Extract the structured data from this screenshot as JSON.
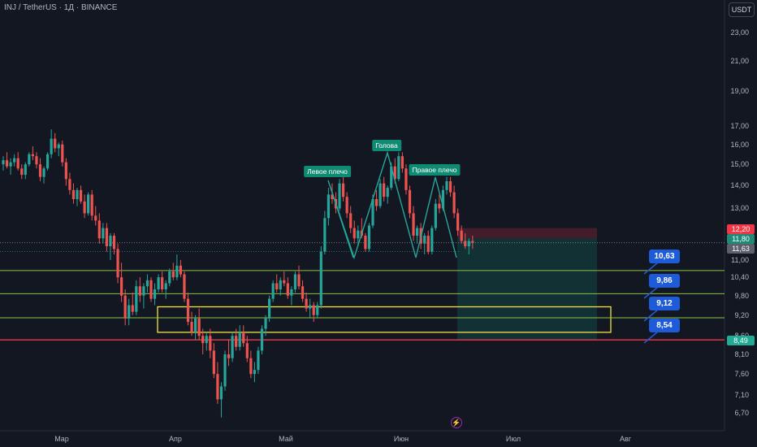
{
  "header": {
    "title": "INJ / TetherUS · 1Д · BINANCE",
    "currency_button": "USDT"
  },
  "price_axis": [
    "23,00",
    "21,00",
    "19,00",
    "17,00",
    "16,00",
    "15,00",
    "14,00",
    "13,00",
    "11,00",
    "10,40",
    "9,80",
    "9,20",
    "8,60",
    "8,10",
    "7,60",
    "7,10",
    "6,70"
  ],
  "time_axis": [
    "Мар",
    "Апр",
    "Май",
    "Июн",
    "Июл",
    "Авг"
  ],
  "price_tags": [
    {
      "text": "12,20",
      "color": "#f23645"
    },
    {
      "text": "11,80",
      "color": "#1f8a78"
    },
    {
      "text": "11,63",
      "color": "#5d606b"
    },
    {
      "text": "8,49",
      "color": "#22ab94"
    }
  ],
  "callouts": [
    "10,63",
    "9,86",
    "9,12",
    "8,54"
  ],
  "pattern_labels": [
    "Левое плечо",
    "Голова",
    "Правое плечо"
  ],
  "colors": {
    "bull": "#26a69a",
    "bear": "#ef5350",
    "level_green": "#8bc34a",
    "level_red": "#f23645",
    "zone": "#f5e342",
    "callout": "#1e5bd8"
  },
  "icons": {
    "replay": "lightning-bolt-icon"
  },
  "chart_data": {
    "type": "candlestick",
    "title": "INJ / TetherUS · 1Д · BINANCE",
    "x_ticks": [
      "Мар",
      "Апр",
      "Май",
      "Июн",
      "Июл",
      "Авг"
    ],
    "y_ticks": [
      23.0,
      21.0,
      19.0,
      17.0,
      16.0,
      15.0,
      14.0,
      13.0,
      11.0,
      10.4,
      9.8,
      9.2,
      8.6,
      8.1,
      7.6,
      7.1,
      6.7
    ],
    "y_scale": "log",
    "ylim": [
      6.5,
      25.0
    ],
    "current_price": 11.63,
    "horizontal_levels": [
      10.63,
      9.86,
      9.12,
      8.49
    ],
    "demand_zone": [
      8.7,
      9.45
    ],
    "position": {
      "entry": 11.8,
      "stop": 12.2,
      "target": 8.49
    },
    "pattern": "head and shoulders",
    "pattern_points": [
      {
        "label": "Левое плечо",
        "price": 14.2
      },
      {
        "label": "Голова",
        "price": 15.6
      },
      {
        "label": "Правое плечо",
        "price": 14.4
      }
    ],
    "ohlc": [
      [
        15.0,
        15.4,
        14.7,
        15.2
      ],
      [
        15.2,
        15.6,
        14.8,
        14.9
      ],
      [
        14.9,
        15.3,
        14.5,
        15.1
      ],
      [
        15.1,
        15.5,
        14.9,
        15.3
      ],
      [
        15.3,
        15.6,
        14.7,
        14.8
      ],
      [
        14.8,
        15.0,
        14.3,
        14.5
      ],
      [
        14.5,
        15.1,
        14.3,
        15.0
      ],
      [
        15.0,
        15.6,
        14.9,
        15.5
      ],
      [
        15.5,
        15.9,
        15.2,
        15.4
      ],
      [
        15.4,
        15.6,
        14.8,
        15.0
      ],
      [
        15.0,
        15.3,
        14.2,
        14.4
      ],
      [
        14.4,
        14.9,
        14.1,
        14.8
      ],
      [
        14.8,
        15.6,
        14.7,
        15.5
      ],
      [
        15.5,
        16.8,
        15.3,
        16.3
      ],
      [
        16.3,
        16.6,
        15.6,
        15.8
      ],
      [
        15.8,
        16.1,
        15.4,
        16.0
      ],
      [
        16.0,
        16.2,
        14.9,
        15.1
      ],
      [
        15.1,
        15.3,
        14.0,
        14.3
      ],
      [
        14.3,
        14.6,
        13.6,
        13.8
      ],
      [
        13.8,
        14.1,
        13.2,
        13.4
      ],
      [
        13.4,
        13.9,
        13.1,
        13.8
      ],
      [
        13.8,
        14.0,
        13.2,
        13.3
      ],
      [
        13.3,
        13.6,
        12.6,
        12.8
      ],
      [
        12.8,
        13.7,
        12.7,
        13.6
      ],
      [
        13.6,
        13.8,
        12.5,
        12.7
      ],
      [
        12.7,
        13.1,
        12.3,
        12.5
      ],
      [
        12.5,
        12.8,
        11.6,
        11.8
      ],
      [
        11.8,
        12.4,
        11.6,
        12.2
      ],
      [
        12.2,
        12.4,
        11.3,
        11.5
      ],
      [
        11.5,
        12.0,
        11.0,
        11.9
      ],
      [
        11.9,
        12.0,
        11.2,
        11.4
      ],
      [
        11.4,
        11.6,
        10.2,
        10.4
      ],
      [
        10.4,
        10.9,
        9.6,
        9.8
      ],
      [
        9.8,
        10.0,
        8.9,
        9.1
      ],
      [
        9.1,
        9.7,
        8.9,
        9.5
      ],
      [
        9.5,
        9.9,
        9.2,
        9.3
      ],
      [
        9.3,
        10.3,
        9.2,
        10.1
      ],
      [
        10.1,
        10.4,
        9.6,
        9.8
      ],
      [
        9.8,
        10.2,
        9.4,
        10.1
      ],
      [
        10.1,
        10.5,
        9.9,
        10.3
      ],
      [
        10.3,
        10.4,
        9.6,
        9.7
      ],
      [
        9.7,
        10.2,
        9.5,
        10.0
      ],
      [
        10.0,
        10.5,
        9.9,
        10.4
      ],
      [
        10.4,
        10.6,
        9.9,
        10.0
      ],
      [
        10.0,
        10.3,
        9.7,
        10.2
      ],
      [
        10.2,
        10.7,
        10.1,
        10.6
      ],
      [
        10.6,
        10.9,
        10.3,
        10.4
      ],
      [
        10.4,
        11.2,
        10.3,
        10.8
      ],
      [
        10.8,
        11.0,
        10.4,
        10.5
      ],
      [
        10.5,
        10.6,
        9.6,
        9.7
      ],
      [
        9.7,
        9.9,
        8.9,
        9.0
      ],
      [
        9.0,
        9.3,
        8.6,
        8.7
      ],
      [
        8.7,
        9.2,
        8.5,
        9.1
      ],
      [
        9.1,
        9.4,
        8.5,
        8.6
      ],
      [
        8.6,
        8.8,
        8.1,
        8.4
      ],
      [
        8.4,
        8.7,
        8.2,
        8.6
      ],
      [
        8.6,
        8.8,
        8.0,
        8.2
      ],
      [
        8.2,
        8.4,
        7.5,
        7.6
      ],
      [
        7.6,
        7.9,
        6.9,
        7.0
      ],
      [
        7.0,
        7.4,
        6.6,
        7.3
      ],
      [
        7.3,
        8.2,
        7.2,
        8.1
      ],
      [
        8.1,
        8.5,
        7.8,
        8.0
      ],
      [
        8.0,
        8.7,
        7.9,
        8.6
      ],
      [
        8.6,
        8.8,
        8.2,
        8.3
      ],
      [
        8.3,
        8.9,
        8.2,
        8.7
      ],
      [
        8.7,
        8.9,
        8.3,
        8.4
      ],
      [
        8.4,
        8.6,
        7.9,
        8.0
      ],
      [
        8.0,
        8.2,
        7.5,
        7.6
      ],
      [
        7.6,
        7.9,
        7.4,
        7.7
      ],
      [
        7.7,
        8.3,
        7.6,
        8.2
      ],
      [
        8.2,
        8.9,
        8.1,
        8.8
      ],
      [
        8.8,
        9.2,
        8.6,
        9.1
      ],
      [
        9.1,
        9.8,
        9.0,
        9.7
      ],
      [
        9.7,
        10.3,
        9.6,
        10.2
      ],
      [
        10.2,
        10.5,
        9.9,
        10.0
      ],
      [
        10.0,
        10.4,
        9.8,
        10.3
      ],
      [
        10.3,
        10.6,
        10.1,
        10.2
      ],
      [
        10.2,
        10.4,
        9.7,
        9.8
      ],
      [
        9.8,
        10.1,
        9.5,
        10.0
      ],
      [
        10.0,
        10.6,
        9.9,
        10.5
      ],
      [
        10.5,
        10.8,
        10.0,
        10.1
      ],
      [
        10.1,
        10.3,
        9.6,
        9.7
      ],
      [
        9.7,
        9.9,
        9.3,
        9.4
      ],
      [
        9.4,
        9.7,
        9.1,
        9.5
      ],
      [
        9.5,
        9.6,
        9.0,
        9.2
      ],
      [
        9.2,
        9.6,
        9.1,
        9.5
      ],
      [
        9.5,
        11.5,
        9.4,
        11.3
      ],
      [
        11.3,
        12.9,
        11.2,
        12.6
      ],
      [
        12.6,
        13.9,
        12.3,
        13.6
      ],
      [
        13.6,
        14.1,
        13.2,
        13.4
      ],
      [
        13.4,
        13.7,
        12.8,
        13.0
      ],
      [
        13.0,
        14.3,
        12.9,
        14.1
      ],
      [
        14.1,
        14.4,
        13.3,
        13.5
      ],
      [
        13.5,
        13.7,
        12.6,
        12.8
      ],
      [
        12.8,
        13.1,
        12.0,
        12.2
      ],
      [
        12.2,
        12.5,
        11.6,
        11.8
      ],
      [
        11.8,
        12.3,
        11.5,
        12.1
      ],
      [
        12.1,
        12.6,
        11.8,
        11.9
      ],
      [
        11.9,
        12.0,
        11.3,
        11.4
      ],
      [
        11.4,
        12.4,
        11.3,
        12.3
      ],
      [
        12.3,
        13.6,
        12.2,
        13.4
      ],
      [
        13.4,
        13.8,
        12.9,
        13.1
      ],
      [
        13.1,
        14.3,
        13.0,
        14.1
      ],
      [
        14.1,
        14.4,
        13.3,
        13.5
      ],
      [
        13.5,
        14.0,
        13.2,
        13.9
      ],
      [
        13.9,
        15.1,
        13.8,
        14.9
      ],
      [
        14.9,
        15.3,
        14.1,
        14.3
      ],
      [
        14.3,
        15.6,
        14.2,
        15.4
      ],
      [
        15.4,
        15.6,
        14.6,
        14.8
      ],
      [
        14.8,
        15.0,
        13.6,
        13.8
      ],
      [
        13.8,
        14.0,
        12.6,
        12.8
      ],
      [
        12.8,
        13.1,
        11.7,
        11.9
      ],
      [
        11.9,
        12.3,
        11.6,
        12.2
      ],
      [
        12.2,
        12.4,
        11.4,
        11.6
      ],
      [
        11.6,
        12.0,
        11.2,
        11.9
      ],
      [
        11.9,
        12.1,
        11.2,
        11.3
      ],
      [
        11.3,
        12.3,
        11.2,
        12.2
      ],
      [
        12.2,
        13.4,
        12.1,
        13.2
      ],
      [
        13.2,
        13.6,
        12.8,
        13.0
      ],
      [
        13.0,
        14.0,
        12.9,
        13.8
      ],
      [
        13.8,
        14.4,
        13.6,
        14.2
      ],
      [
        14.2,
        14.4,
        13.5,
        13.7
      ],
      [
        13.7,
        14.0,
        12.6,
        12.8
      ],
      [
        12.8,
        13.0,
        11.9,
        12.1
      ],
      [
        12.1,
        12.3,
        11.6,
        11.7
      ],
      [
        11.7,
        12.0,
        11.4,
        11.5
      ],
      [
        11.5,
        11.8,
        11.2,
        11.7
      ],
      [
        11.7,
        11.9,
        11.4,
        11.63
      ]
    ]
  }
}
